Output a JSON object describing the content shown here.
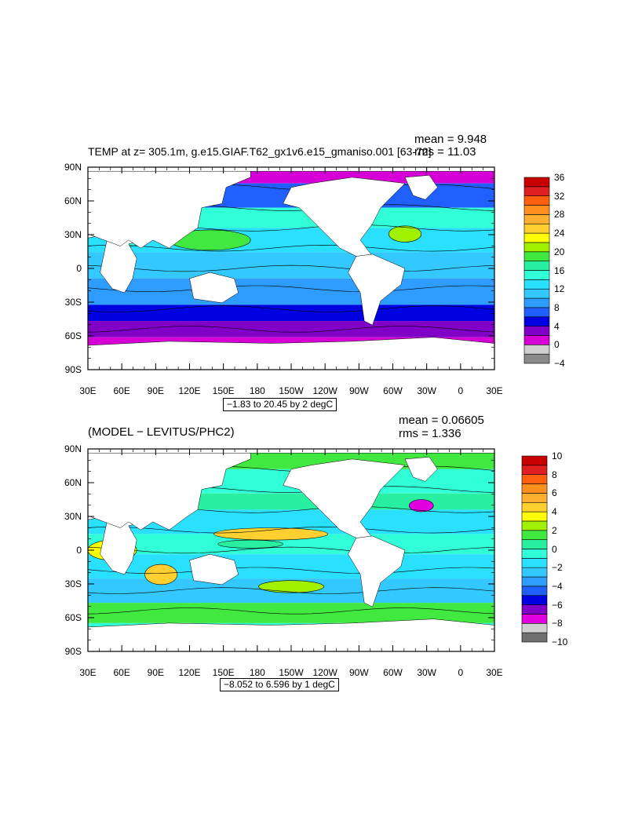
{
  "panels": [
    {
      "title": "TEMP at z= 305.1m, g.e15.GIAF.T62_gx1v6.e15_gmaniso.001 [63-72]",
      "mean_label": "mean = 9.948",
      "rms_label": "rms = 11.03",
      "range_label": "−1.83 to 20.45 by 2 degC",
      "lat_ticks": [
        "90N",
        "60N",
        "30N",
        "0",
        "30S",
        "60S",
        "90S"
      ],
      "lon_ticks": [
        "30E",
        "60E",
        "90E",
        "120E",
        "150E",
        "180",
        "150W",
        "120W",
        "90W",
        "60W",
        "30W",
        "0",
        "30E"
      ],
      "colorbar_labels": [
        "36",
        "32",
        "28",
        "24",
        "20",
        "16",
        "12",
        "8",
        "4",
        "0",
        "−4"
      ],
      "colorbar_colors": [
        "#8a8a8a",
        "#d0d0d0",
        "#d600d6",
        "#8000c8",
        "#0000e0",
        "#1f60ff",
        "#2f9cff",
        "#33c8ff",
        "#2ae0ff",
        "#30ffd8",
        "#28f0a0",
        "#40e840",
        "#a0f000",
        "#ffff00",
        "#ffd030",
        "#ffb030",
        "#ff9020",
        "#ff6010",
        "#e02020",
        "#c80000"
      ]
    },
    {
      "title": "(MODEL − LEVITUS/PHC2)",
      "mean_label": "mean = 0.06605",
      "rms_label": "rms = 1.336",
      "range_label": "−8.052 to 6.596 by 1 degC",
      "lat_ticks": [
        "90N",
        "60N",
        "30N",
        "0",
        "30S",
        "60S",
        "90S"
      ],
      "lon_ticks": [
        "30E",
        "60E",
        "90E",
        "120E",
        "150E",
        "180",
        "150W",
        "120W",
        "90W",
        "60W",
        "30W",
        "0",
        "30E"
      ],
      "colorbar_labels": [
        "10",
        "8",
        "6",
        "4",
        "2",
        "0",
        "−2",
        "−4",
        "−6",
        "−8",
        "−10"
      ],
      "colorbar_colors": [
        "#707070",
        "#d0d0d0",
        "#e000e0",
        "#8000c8",
        "#0000e0",
        "#1f60ff",
        "#2f9cff",
        "#33c8ff",
        "#2ae0ff",
        "#30ffd8",
        "#28f0a0",
        "#40e840",
        "#a0f000",
        "#ffff00",
        "#ffd030",
        "#ffb030",
        "#ff9020",
        "#ff6010",
        "#e02020",
        "#c80000"
      ]
    }
  ],
  "colors": {
    "land": "#ffffff",
    "frame": "#000000"
  }
}
